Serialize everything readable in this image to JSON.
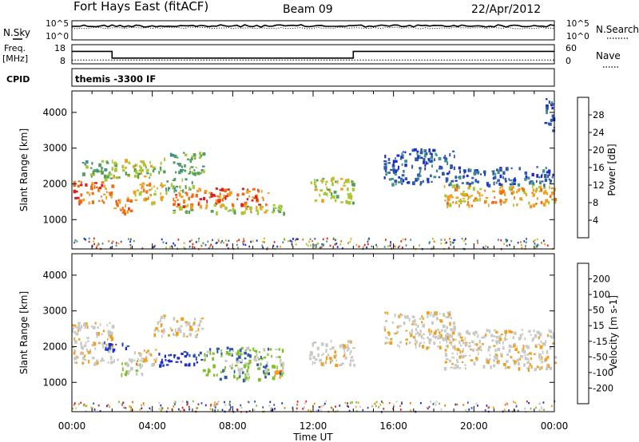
{
  "header": {
    "station": "Fort Hays East (fitACF)",
    "beam": "Beam 09",
    "date": "22/Apr/2012"
  },
  "side_labels": {
    "nsky": "N.Sky",
    "freq": "Freq.",
    "freq_unit": "[MHz]",
    "cpid": "CPID",
    "nsearch": "N.Search",
    "nave": "Nave"
  },
  "cpid_text": "themis -3300 IF",
  "noise_panel": {
    "left_ticks": [
      "10^5",
      "10^0"
    ],
    "right_ticks": [
      "10^5",
      "10^0"
    ]
  },
  "freq_panel": {
    "left_ticks": [
      "18",
      "8"
    ],
    "right_ticks": [
      "60",
      "0"
    ],
    "freq_steps": [
      {
        "from": 0.0,
        "to": 2.0,
        "mhz": 14.5
      },
      {
        "from": 2.0,
        "to": 14.0,
        "mhz": 11.0
      },
      {
        "from": 14.0,
        "to": 24.0,
        "mhz": 14.5
      }
    ],
    "nave_dotted": 12
  },
  "colors": {
    "power": [
      "#1a2bd0",
      "#2f5aa8",
      "#3f8f8f",
      "#52a05a",
      "#a8c832",
      "#f0a020",
      "#f56a14",
      "#e01e1e"
    ],
    "velocity": [
      "#e01e1e",
      "#f56a14",
      "#f0a020",
      "#c8c8c4",
      "#c8c8c4",
      "#80c030",
      "#2f5aa8",
      "#1a2bd0"
    ],
    "background": "#ffffff",
    "axis": "#000000"
  },
  "chart_data": [
    {
      "type": "heatmap",
      "title": "Power",
      "ylabel": "Slant Range [km]",
      "xlim_hours": [
        0,
        24
      ],
      "ylim": [
        180,
        4600
      ],
      "y_ticks": [
        1000,
        2000,
        3000,
        4000
      ],
      "colorbar_label": "Power [dB]",
      "colorbar_ticks": [
        "28",
        "24",
        "20",
        "16",
        "12",
        "8",
        "4"
      ],
      "bands": [
        {
          "t0": 0.0,
          "t1": 2.0,
          "r0": 1500,
          "r1": 2100,
          "level": 6
        },
        {
          "t0": 0.5,
          "t1": 2.0,
          "r0": 2150,
          "r1": 2700,
          "level": 3
        },
        {
          "t0": 2.0,
          "t1": 3.0,
          "r0": 1200,
          "r1": 1700,
          "level": 6
        },
        {
          "t0": 2.0,
          "t1": 4.5,
          "r0": 2200,
          "r1": 2700,
          "level": 4
        },
        {
          "t0": 3.0,
          "t1": 4.5,
          "r0": 1500,
          "r1": 2100,
          "level": 5
        },
        {
          "t0": 4.5,
          "t1": 6.5,
          "r0": 2300,
          "r1": 2900,
          "level": 3
        },
        {
          "t0": 4.5,
          "t1": 6.0,
          "r0": 1800,
          "r1": 2200,
          "level": 3
        },
        {
          "t0": 5.0,
          "t1": 9.8,
          "r0": 1400,
          "r1": 1900,
          "level": 6
        },
        {
          "t0": 5.0,
          "t1": 10.5,
          "r0": 1200,
          "r1": 1450,
          "level": 4
        },
        {
          "t0": 11.8,
          "t1": 14.0,
          "r0": 1500,
          "r1": 2200,
          "level": 4
        },
        {
          "t0": 15.5,
          "t1": 19.0,
          "r0": 2000,
          "r1": 3000,
          "level": 1
        },
        {
          "t0": 18.5,
          "t1": 24.0,
          "r0": 1400,
          "r1": 2000,
          "level": 5
        },
        {
          "t0": 19.0,
          "t1": 24.0,
          "r0": 2000,
          "r1": 2500,
          "level": 1
        },
        {
          "t0": 23.5,
          "t1": 24.0,
          "r0": 3500,
          "r1": 4400,
          "level": 1
        }
      ]
    },
    {
      "type": "heatmap",
      "title": "Velocity",
      "ylabel": "Slant Range [km]",
      "xlabel": "Time UT",
      "xlim_hours": [
        0,
        24
      ],
      "x_ticks": [
        "00:00",
        "04:00",
        "08:00",
        "12:00",
        "16:00",
        "20:00",
        "00:00"
      ],
      "ylim": [
        180,
        4600
      ],
      "y_ticks": [
        1000,
        2000,
        3000,
        4000
      ],
      "colorbar_label": "Velocity [m s-1]",
      "colorbar_ticks": [
        "200",
        "100",
        "50",
        "15",
        "-15",
        "-50",
        "-100",
        "-200"
      ],
      "bands": [
        {
          "t0": 0.0,
          "t1": 2.0,
          "r0": 1500,
          "r1": 2700,
          "level": 3
        },
        {
          "t0": 1.5,
          "t1": 2.8,
          "r0": 1900,
          "r1": 2200,
          "level": 7
        },
        {
          "t0": 2.0,
          "t1": 3.5,
          "r0": 1200,
          "r1": 1700,
          "level": 4
        },
        {
          "t0": 3.0,
          "t1": 4.2,
          "r0": 1500,
          "r1": 2000,
          "level": 2
        },
        {
          "t0": 4.0,
          "t1": 6.5,
          "r0": 2300,
          "r1": 2900,
          "level": 3
        },
        {
          "t0": 4.3,
          "t1": 6.5,
          "r0": 1500,
          "r1": 1900,
          "level": 7
        },
        {
          "t0": 6.5,
          "t1": 10.5,
          "r0": 1100,
          "r1": 2000,
          "level": 5
        },
        {
          "t0": 10.0,
          "t1": 10.5,
          "r0": 1100,
          "r1": 1400,
          "level": 2
        },
        {
          "t0": 11.8,
          "t1": 14.0,
          "r0": 1500,
          "r1": 2200,
          "level": 3
        },
        {
          "t0": 15.5,
          "t1": 19.0,
          "r0": 2000,
          "r1": 3000,
          "level": 3
        },
        {
          "t0": 18.5,
          "t1": 24.0,
          "r0": 1400,
          "r1": 2500,
          "level": 3
        }
      ]
    }
  ]
}
